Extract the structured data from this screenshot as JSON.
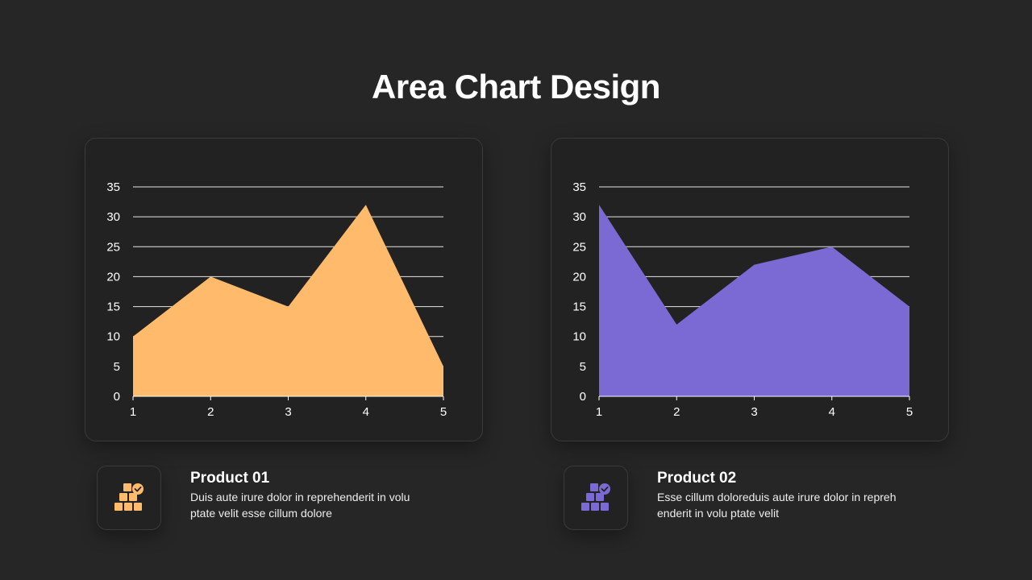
{
  "title": "Area Chart Design",
  "chart_data": [
    {
      "type": "area",
      "categories": [
        "1",
        "2",
        "3",
        "4",
        "5"
      ],
      "values": [
        10,
        20,
        15,
        32,
        5
      ],
      "ylim": [
        0,
        35
      ],
      "yticks": [
        "0",
        "5",
        "10",
        "15",
        "20",
        "25",
        "30",
        "35"
      ],
      "grid": true,
      "color": "#FFBA6B"
    },
    {
      "type": "area",
      "categories": [
        "1",
        "2",
        "3",
        "4",
        "5"
      ],
      "values": [
        32,
        12,
        22,
        25,
        15
      ],
      "ylim": [
        0,
        35
      ],
      "yticks": [
        "0",
        "5",
        "10",
        "15",
        "20",
        "25",
        "30",
        "35"
      ],
      "grid": true,
      "color": "#7B6AD3"
    }
  ],
  "products": [
    {
      "title": "Product 01",
      "description": "Duis aute irure dolor in reprehenderit in volu ptate velit esse cillum dolore",
      "icon": "boxes-check-icon",
      "color": "#FFBA6B"
    },
    {
      "title": "Product 02",
      "description": "Esse cillum doloreduis aute irure dolor in repreh enderit in volu ptate velit",
      "icon": "boxes-check-icon",
      "color": "#7B6AD3"
    }
  ]
}
